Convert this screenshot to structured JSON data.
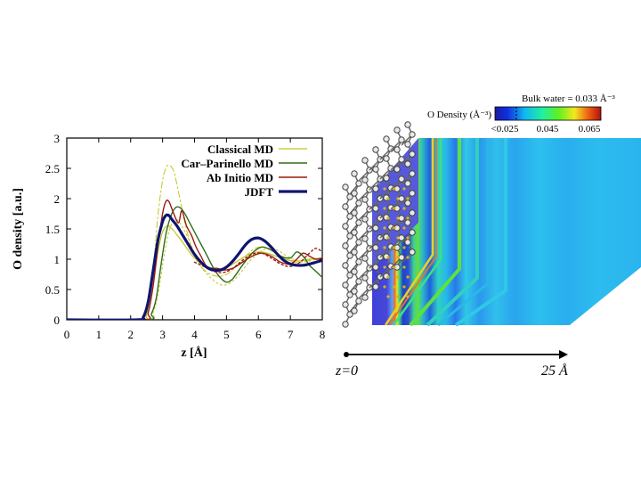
{
  "chart_data": {
    "type": "line",
    "xlabel": "z [Å]",
    "ylabel": "O density [a.u.]",
    "xlim": [
      0,
      8
    ],
    "ylim": [
      0,
      3
    ],
    "xticks": [
      "0",
      "1",
      "2",
      "3",
      "4",
      "5",
      "6",
      "7",
      "8"
    ],
    "yticks": [
      "0",
      "0.5",
      "1",
      "1.5",
      "2",
      "2.5",
      "3"
    ],
    "legend_position": "top-right",
    "series": [
      {
        "name": "Classical MD",
        "color": "#c4c41e",
        "style": "solid",
        "width": 1.2,
        "x": [
          0,
          2.2,
          2.4,
          2.55,
          2.7,
          2.85,
          3.0,
          3.15,
          3.3,
          3.45,
          3.6,
          3.8,
          4.0,
          4.3,
          4.6,
          4.9,
          5.2,
          5.5,
          5.8,
          6.1,
          6.4,
          6.7,
          7.0,
          7.3,
          7.6,
          8.0
        ],
        "y": [
          0,
          0,
          0.03,
          0.15,
          0.55,
          1.1,
          1.45,
          1.55,
          1.5,
          1.4,
          1.3,
          1.15,
          1.02,
          0.9,
          0.85,
          0.85,
          0.92,
          1.02,
          1.1,
          1.12,
          1.08,
          1.02,
          0.98,
          0.97,
          1.0,
          1.02
        ]
      },
      {
        "name": "",
        "color": "#c4c41e",
        "style": "dashdot",
        "width": 1.0,
        "x": [
          0,
          2.3,
          2.5,
          2.7,
          2.85,
          3.0,
          3.1,
          3.2,
          3.35,
          3.5,
          3.7,
          3.9,
          4.1,
          4.4,
          4.7,
          5.0,
          5.3,
          5.6,
          5.9,
          6.2,
          6.5,
          6.8,
          7.1,
          7.4,
          7.7,
          8.0
        ],
        "y": [
          0,
          0,
          0.1,
          0.8,
          1.7,
          2.3,
          2.5,
          2.55,
          2.45,
          2.1,
          1.6,
          1.2,
          0.95,
          0.78,
          0.72,
          0.75,
          0.88,
          1.05,
          1.18,
          1.2,
          1.12,
          1.02,
          0.95,
          0.95,
          1.0,
          1.02
        ]
      },
      {
        "name": "",
        "color": "#c4c41e",
        "style": "dotted",
        "width": 1.0,
        "x": [
          0,
          2.5,
          2.7,
          2.85,
          3.0,
          3.15,
          3.3,
          3.45,
          3.6,
          3.8,
          4.0,
          4.2,
          4.5,
          4.8,
          5.1,
          5.4,
          5.7,
          6.0,
          6.3,
          6.6,
          6.9,
          7.2,
          7.5,
          7.8,
          8.0
        ],
        "y": [
          0,
          0,
          0.12,
          0.4,
          0.9,
          1.35,
          1.6,
          1.65,
          1.55,
          1.35,
          1.1,
          0.88,
          0.7,
          0.58,
          0.6,
          0.75,
          0.95,
          1.1,
          1.18,
          1.15,
          1.05,
          0.98,
          0.96,
          1.0,
          1.02
        ]
      },
      {
        "name": "Car–Parinello MD",
        "color": "#2e6e1a",
        "style": "solid",
        "width": 1.4,
        "x": [
          0,
          2.5,
          2.65,
          2.8,
          2.95,
          3.1,
          3.25,
          3.4,
          3.55,
          3.7,
          3.85,
          4.0,
          4.2,
          4.4,
          4.6,
          4.8,
          5.0,
          5.2,
          5.5,
          5.8,
          6.1,
          6.4,
          6.7,
          7.0,
          7.2,
          7.4,
          7.6,
          7.8,
          8.0
        ],
        "y": [
          0,
          0,
          0.1,
          0.35,
          0.9,
          1.4,
          1.7,
          1.85,
          1.85,
          1.75,
          1.6,
          1.45,
          1.25,
          1.05,
          0.85,
          0.7,
          0.62,
          0.68,
          0.9,
          1.1,
          1.2,
          1.15,
          1.05,
          1.02,
          1.12,
          1.05,
          0.9,
          0.8,
          0.7
        ]
      },
      {
        "name": "Ab Initio MD",
        "color": "#9a1a10",
        "style": "solid",
        "width": 1.4,
        "x": [
          0,
          2.4,
          2.55,
          2.7,
          2.85,
          3.0,
          3.1,
          3.2,
          3.35,
          3.5,
          3.6,
          3.75,
          3.9,
          4.05,
          4.2,
          4.35,
          4.5,
          4.7,
          4.9,
          5.2,
          5.5,
          5.8,
          6.1,
          6.4,
          6.7,
          7.0,
          7.2,
          7.4,
          7.6,
          7.8,
          8.0
        ],
        "y": [
          0,
          0,
          0.12,
          0.55,
          1.2,
          1.75,
          1.95,
          1.95,
          1.75,
          1.6,
          1.8,
          1.55,
          1.4,
          1.2,
          1.05,
          0.9,
          0.85,
          0.85,
          0.82,
          0.85,
          0.95,
          1.05,
          1.1,
          1.05,
          0.95,
          0.92,
          1.0,
          1.1,
          1.05,
          1.0,
          1.02
        ]
      },
      {
        "name": "",
        "color": "#9a1a10",
        "style": "dotted",
        "width": 1.4,
        "x": [
          4.0,
          4.3,
          4.6,
          4.9,
          5.2,
          5.5,
          5.8,
          6.1,
          6.4,
          6.7,
          7.0,
          7.3,
          7.6,
          7.8,
          8.0
        ],
        "y": [
          0.95,
          0.88,
          0.8,
          0.78,
          0.85,
          0.98,
          1.08,
          1.1,
          1.02,
          0.92,
          0.88,
          0.95,
          1.1,
          1.18,
          1.12
        ]
      },
      {
        "name": "JDFT",
        "color": "#101470",
        "style": "solid",
        "width": 3.2,
        "x": [
          0,
          2.2,
          2.4,
          2.55,
          2.7,
          2.85,
          3.0,
          3.1,
          3.2,
          3.3,
          3.45,
          3.6,
          3.8,
          4.0,
          4.2,
          4.4,
          4.6,
          4.8,
          5.0,
          5.2,
          5.4,
          5.6,
          5.8,
          6.0,
          6.2,
          6.4,
          6.6,
          6.8,
          7.0,
          7.2,
          7.4,
          7.6,
          7.8,
          8.0
        ],
        "y": [
          0,
          0,
          0.05,
          0.3,
          0.8,
          1.3,
          1.62,
          1.72,
          1.72,
          1.65,
          1.55,
          1.42,
          1.25,
          1.08,
          0.95,
          0.86,
          0.82,
          0.82,
          0.87,
          0.97,
          1.1,
          1.24,
          1.33,
          1.35,
          1.3,
          1.2,
          1.08,
          0.98,
          0.92,
          0.9,
          0.9,
          0.92,
          0.95,
          0.98
        ]
      }
    ]
  },
  "colorbar": {
    "title": "O Density (Å⁻³)",
    "bulk_label": "Bulk water = 0.033 Å⁻³",
    "tick_labels": [
      "<0.025",
      "0.045",
      "0.065"
    ]
  },
  "axis_arrow": {
    "start_label": "z=0",
    "end_label": "25 Å"
  }
}
